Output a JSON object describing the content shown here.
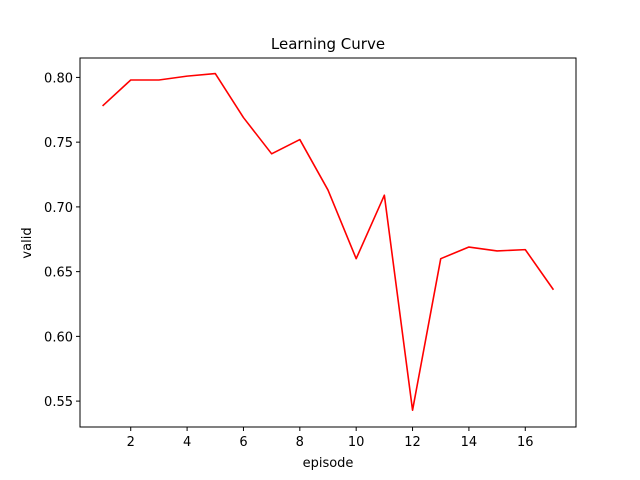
{
  "chart_data": {
    "type": "line",
    "title": "Learning Curve",
    "xlabel": "episode",
    "ylabel": "valid",
    "xlim": [
      0.2,
      17.8
    ],
    "ylim": [
      0.53,
      0.815
    ],
    "x_ticks": [
      2,
      4,
      6,
      8,
      10,
      12,
      14,
      16
    ],
    "y_ticks": [
      0.55,
      0.6,
      0.65,
      0.7,
      0.75,
      0.8
    ],
    "x_tick_labels": [
      "2",
      "4",
      "6",
      "8",
      "10",
      "12",
      "14",
      "16"
    ],
    "y_tick_labels": [
      "0.55",
      "0.60",
      "0.65",
      "0.70",
      "0.75",
      "0.80"
    ],
    "grid": false,
    "legend": "none",
    "series": [
      {
        "color": "#ff0000",
        "x": [
          1,
          2,
          3,
          4,
          5,
          6,
          7,
          8,
          9,
          10,
          11,
          12,
          13,
          14,
          15,
          16,
          17
        ],
        "y": [
          0.778,
          0.798,
          0.798,
          0.801,
          0.803,
          0.769,
          0.741,
          0.752,
          0.713,
          0.66,
          0.709,
          0.543,
          0.66,
          0.669,
          0.666,
          0.667,
          0.636
        ]
      }
    ]
  }
}
